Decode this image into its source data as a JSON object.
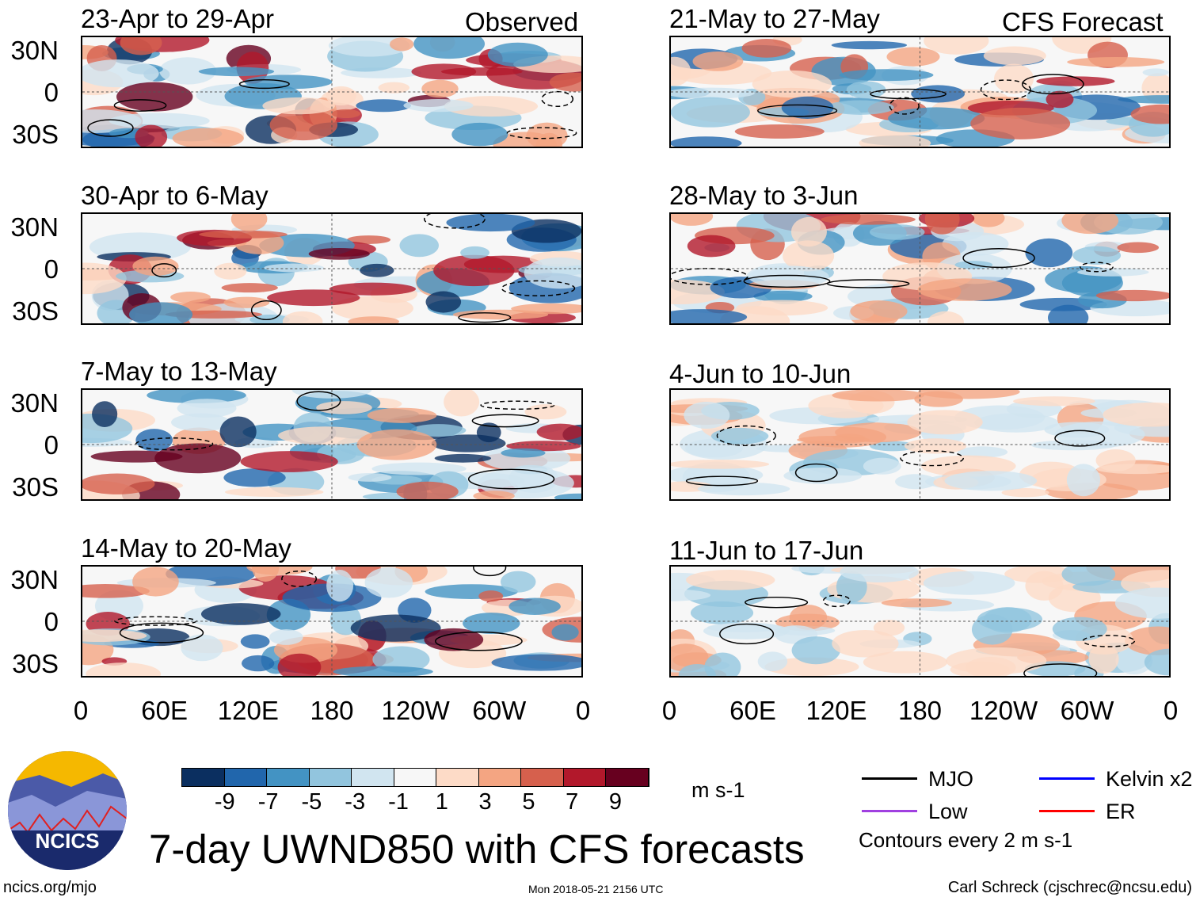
{
  "figure": {
    "title": "7-day UWND850 with CFS forecasts",
    "column_labels": {
      "observed": "Observed",
      "forecast": "CFS Forecast"
    },
    "panels": [
      {
        "title": "23-Apr to 29-Apr",
        "column": "observed"
      },
      {
        "title": "30-Apr to 6-May",
        "column": "observed"
      },
      {
        "title": "7-May to 13-May",
        "column": "observed"
      },
      {
        "title": "14-May to 20-May",
        "column": "observed"
      },
      {
        "title": "21-May to 27-May",
        "column": "forecast"
      },
      {
        "title": "28-May to 3-Jun",
        "column": "forecast"
      },
      {
        "title": "4-Jun to 10-Jun",
        "column": "forecast"
      },
      {
        "title": "11-Jun to 17-Jun",
        "column": "forecast"
      }
    ],
    "y_ticks": [
      "30N",
      "0",
      "30S"
    ],
    "x_ticks": [
      "0",
      "60E",
      "120E",
      "180",
      "120W",
      "60W",
      "0"
    ]
  },
  "colorbar": {
    "colors": [
      "#0b2f60",
      "#2166ac",
      "#4393c3",
      "#92c5de",
      "#d1e5f0",
      "#f7f7f7",
      "#fddbc7",
      "#f4a582",
      "#d6604d",
      "#b2182b",
      "#67001f"
    ],
    "labels": [
      "-9",
      "-7",
      "-5",
      "-3",
      "-1",
      "1",
      "3",
      "5",
      "7",
      "9"
    ],
    "units": "m s-1"
  },
  "legend": {
    "items": [
      {
        "label": "MJO",
        "color": "#000000"
      },
      {
        "label": "Kelvin x2",
        "color": "#0000ff"
      },
      {
        "label": "Low",
        "color": "#a040e0"
      },
      {
        "label": "ER",
        "color": "#ff0000"
      }
    ],
    "note": "Contours every 2 m s-1"
  },
  "logo": {
    "text": "NCICS"
  },
  "footer": {
    "left": "ncics.org/mjo",
    "center": "Mon 2018-05-21 2156 UTC",
    "right": "Carl Schreck (cjschrec@ncsu.edu)"
  }
}
